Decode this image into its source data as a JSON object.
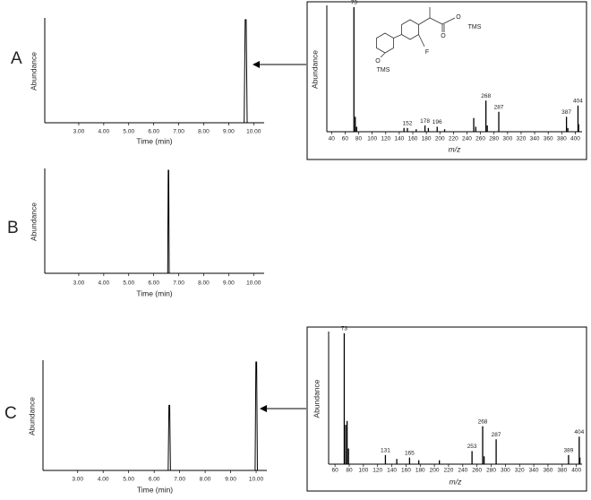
{
  "panel_labels": [
    "A",
    "B",
    "C"
  ],
  "chart_data": [
    {
      "type": "line",
      "xlabel": "Time (min)",
      "ylabel": "Abundance",
      "x": [
        1.7,
        9.62,
        9.66,
        9.7,
        9.74,
        10.4
      ],
      "values": [
        0,
        0,
        100,
        100,
        0,
        0
      ],
      "color": "#000000",
      "xlim": [
        1.64,
        10.42
      ],
      "ylim": [
        0,
        100
      ],
      "xticks": [
        {
          "value": 3,
          "label": "3.00"
        },
        {
          "value": 4,
          "label": "4.00"
        },
        {
          "value": 5,
          "label": "5.00"
        },
        {
          "value": 6,
          "label": "6.00"
        },
        {
          "value": 7,
          "label": "7.00"
        },
        {
          "value": 8,
          "label": "8.00"
        },
        {
          "value": 9,
          "label": "9.00"
        },
        {
          "value": 10,
          "label": "10.00"
        }
      ]
    },
    {
      "type": "line",
      "xlabel": "Time (min)",
      "ylabel": "Abundance",
      "x": [
        1.7,
        6.56,
        6.58,
        6.6,
        6.62,
        10.4
      ],
      "values": [
        0,
        0,
        100,
        100,
        0,
        0
      ],
      "color": "#000000",
      "xlim": [
        1.64,
        10.42
      ],
      "ylim": [
        0,
        100
      ],
      "xticks": [
        {
          "value": 3,
          "label": "3.00"
        },
        {
          "value": 4,
          "label": "4.00"
        },
        {
          "value": 5,
          "label": "5.00"
        },
        {
          "value": 6,
          "label": "6.00"
        },
        {
          "value": 7,
          "label": "7.00"
        },
        {
          "value": 8,
          "label": "8.00"
        },
        {
          "value": 9,
          "label": "9.00"
        },
        {
          "value": 10,
          "label": "10.00"
        }
      ]
    },
    {
      "type": "line",
      "xlabel": "Time (min)",
      "ylabel": "Abundance",
      "x": [
        1.7,
        6.55,
        6.58,
        6.61,
        6.64,
        9.96,
        9.99,
        10.02,
        10.05,
        10.4
      ],
      "values": [
        0,
        0,
        60,
        60,
        0,
        0,
        100,
        100,
        0,
        0
      ],
      "color": "#000000",
      "xlim": [
        1.64,
        10.42
      ],
      "ylim": [
        0,
        100
      ],
      "xticks": [
        {
          "value": 3,
          "label": "3.00"
        },
        {
          "value": 4,
          "label": "4.00"
        },
        {
          "value": 5,
          "label": "5.00"
        },
        {
          "value": 6,
          "label": "6.00"
        },
        {
          "value": 7,
          "label": "7.00"
        },
        {
          "value": 8,
          "label": "8.00"
        },
        {
          "value": 9,
          "label": "9.00"
        },
        {
          "value": 10,
          "label": "10.00"
        }
      ]
    },
    {
      "type": "spectrum",
      "xlabel": "m/z",
      "ylabel": "Abundance",
      "x": [
        73,
        75,
        77,
        147,
        152,
        165,
        178,
        183,
        196,
        207,
        250,
        253,
        268,
        270,
        287,
        387,
        389,
        404,
        405
      ],
      "values": [
        100,
        12,
        4,
        3,
        3,
        2,
        5,
        3,
        4,
        2,
        11,
        4,
        25,
        5,
        16,
        12,
        3,
        21,
        6
      ],
      "color": "#000000",
      "peak_labels": [
        73,
        152,
        178,
        196,
        268,
        287,
        387,
        404
      ],
      "annotations": [
        "O",
        "TMS",
        "F",
        "O",
        "O",
        "TMS"
      ],
      "xlim": [
        33,
        410
      ],
      "ylim": [
        0,
        100
      ],
      "xticks": [
        40,
        60,
        80,
        100,
        120,
        140,
        160,
        180,
        200,
        220,
        240,
        260,
        280,
        300,
        320,
        340,
        360,
        380,
        400
      ]
    },
    {
      "type": "spectrum",
      "xlabel": "m/z",
      "ylabel": "Abundance",
      "x": [
        73,
        75,
        77,
        79,
        131,
        147,
        165,
        178,
        207,
        253,
        268,
        270,
        287,
        389,
        404,
        405
      ],
      "values": [
        100,
        30,
        33,
        12,
        7,
        4,
        5,
        3,
        3,
        10,
        29,
        6,
        19,
        7,
        21,
        5
      ],
      "color": "#000000",
      "peak_labels": [
        73,
        131,
        165,
        253,
        268,
        287,
        389,
        404
      ],
      "xlim": [
        51,
        408
      ],
      "ylim": [
        0,
        100
      ],
      "xticks": [
        60,
        80,
        100,
        120,
        140,
        160,
        180,
        200,
        220,
        240,
        260,
        280,
        300,
        320,
        340,
        360,
        380,
        400
      ]
    }
  ]
}
